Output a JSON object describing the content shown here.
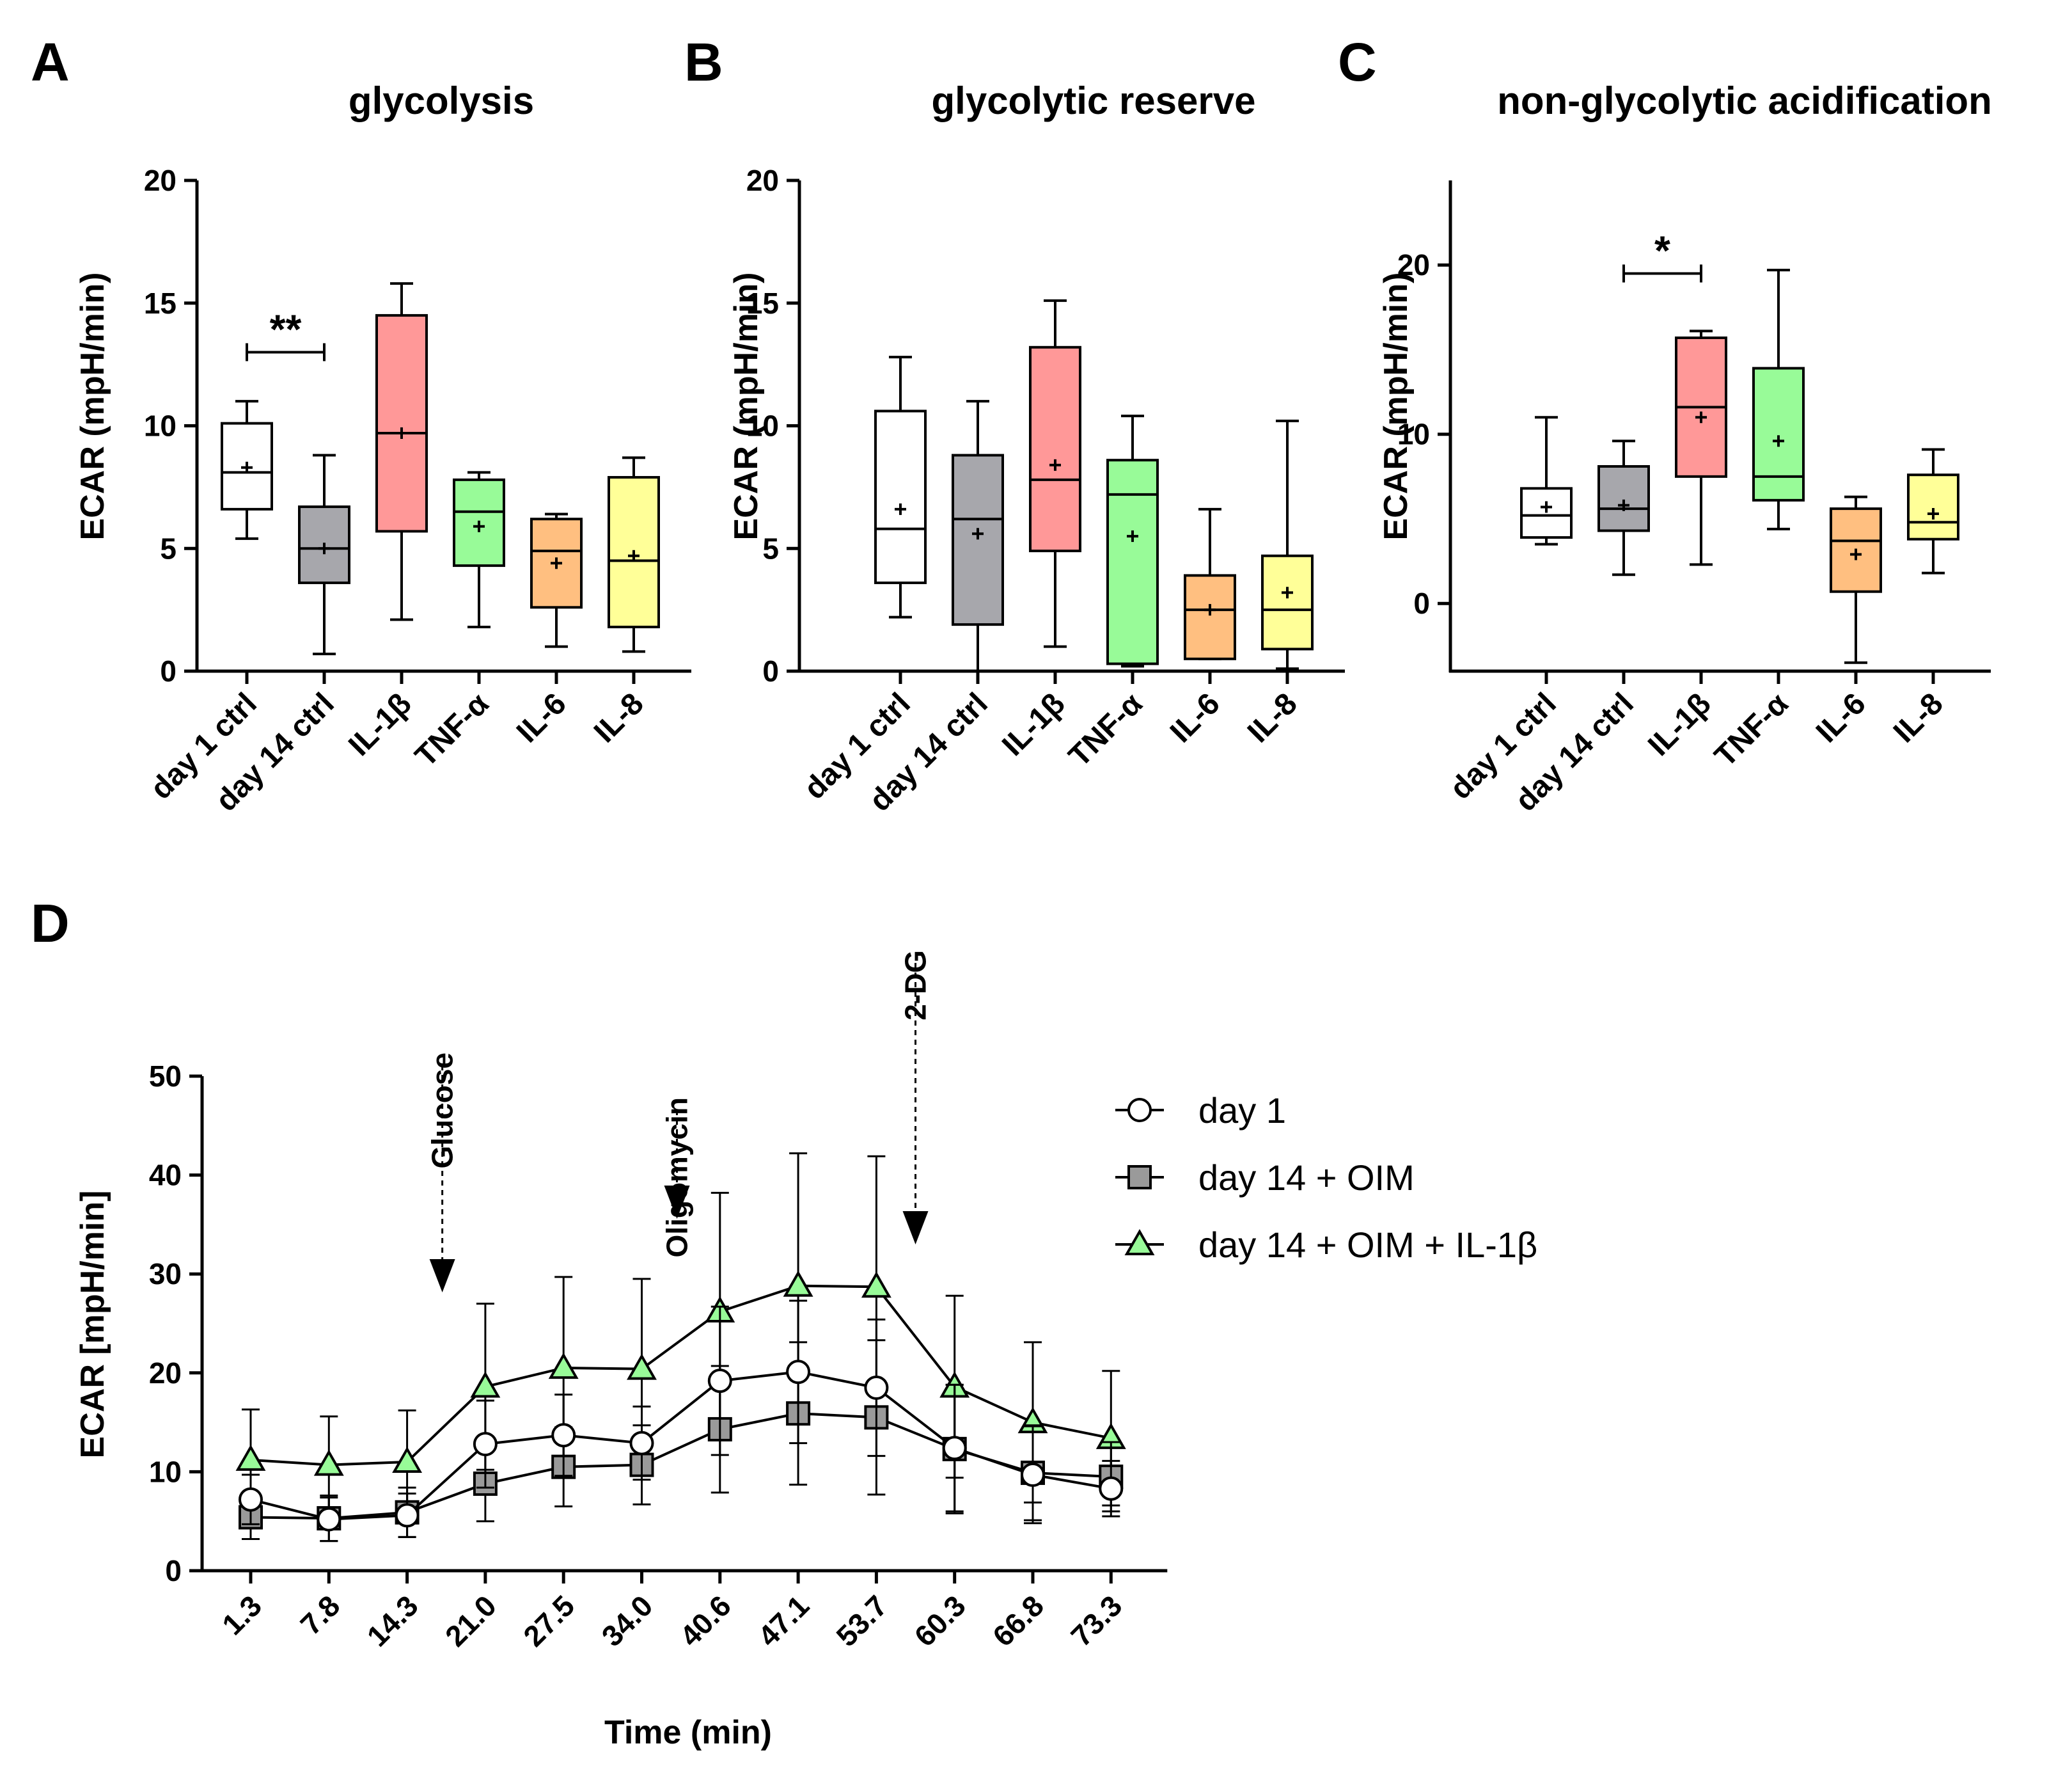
{
  "colors": {
    "day1": "#ffffff",
    "day14": "#a7a7ac",
    "il1b": "#ff9898",
    "tnf": "#98fb98",
    "il6": "#ffbf80",
    "il8": "#ffff98",
    "square": "#9a9a9a",
    "triangle": "#98fb98"
  },
  "chart_data": [
    {
      "panel": "A",
      "type": "box",
      "title": "glycolysis",
      "ylabel": "ECAR (mpH/min)",
      "ylim": [
        0,
        20
      ],
      "yticks": [
        "0",
        "5",
        "10",
        "15",
        "20"
      ],
      "yticks_values": [
        0,
        5,
        10,
        15,
        20
      ],
      "categories": [
        "day 1 ctrl",
        "day 14 ctrl",
        "IL-1β",
        "TNF-α",
        "IL-6",
        "IL-8"
      ],
      "boxes": [
        {
          "min": 5.4,
          "q1": 6.6,
          "median": 8.1,
          "q3": 10.1,
          "max": 11.0,
          "mean": 8.3,
          "color": "day1"
        },
        {
          "min": 0.7,
          "q1": 3.6,
          "median": 5.0,
          "q3": 6.7,
          "max": 8.8,
          "mean": 5.0,
          "color": "day14"
        },
        {
          "min": 2.1,
          "q1": 5.7,
          "median": 9.7,
          "q3": 14.5,
          "max": 15.8,
          "mean": 9.7,
          "color": "il1b"
        },
        {
          "min": 1.8,
          "q1": 4.3,
          "median": 6.5,
          "q3": 7.8,
          "max": 8.1,
          "mean": 5.9,
          "color": "tnf"
        },
        {
          "min": 1.0,
          "q1": 2.6,
          "median": 4.9,
          "q3": 6.2,
          "max": 6.4,
          "mean": 4.4,
          "color": "il6"
        },
        {
          "min": 0.8,
          "q1": 1.8,
          "median": 4.5,
          "q3": 7.9,
          "max": 8.7,
          "mean": 4.7,
          "color": "il8"
        }
      ],
      "significance": {
        "label": "**",
        "from": 0,
        "to": 1,
        "y": 13.0
      }
    },
    {
      "panel": "B",
      "type": "box",
      "title": "glycolytic reserve",
      "ylabel": "ECAR (mpH/min)",
      "ylim": [
        0,
        20
      ],
      "yticks": [
        "0",
        "5",
        "10",
        "15",
        "20"
      ],
      "yticks_values": [
        0,
        5,
        10,
        15,
        20
      ],
      "categories": [
        "day 1 ctrl",
        "day 14 ctrl",
        "IL-1β",
        "TNF-α",
        "IL-6",
        "IL-8"
      ],
      "boxes": [
        {
          "min": 2.2,
          "q1": 3.6,
          "median": 5.8,
          "q3": 10.6,
          "max": 12.8,
          "mean": 6.6,
          "color": "day1"
        },
        {
          "min": 0.0,
          "q1": 1.9,
          "median": 6.2,
          "q3": 8.8,
          "max": 11.0,
          "mean": 5.6,
          "color": "day14"
        },
        {
          "min": 1.0,
          "q1": 4.9,
          "median": 7.8,
          "q3": 13.2,
          "max": 15.1,
          "mean": 8.4,
          "color": "il1b"
        },
        {
          "min": 0.2,
          "q1": 0.3,
          "median": 7.2,
          "q3": 8.6,
          "max": 10.4,
          "mean": 5.5,
          "color": "tnf"
        },
        {
          "min": 0.5,
          "q1": 0.5,
          "median": 2.5,
          "q3": 3.9,
          "max": 6.6,
          "mean": 2.5,
          "color": "il6"
        },
        {
          "min": 0.1,
          "q1": 0.9,
          "median": 2.5,
          "q3": 4.7,
          "max": 10.2,
          "mean": 3.2,
          "color": "il8"
        }
      ]
    },
    {
      "panel": "C",
      "type": "box",
      "title": "non-glycolytic acidification",
      "ylabel": "ECAR (mpH/min)",
      "ylim": [
        -4,
        25
      ],
      "yticks": [
        "0",
        "10",
        "20"
      ],
      "yticks_values": [
        0,
        10,
        20
      ],
      "categories": [
        "day 1 ctrl",
        "day 14 ctrl",
        "IL-1β",
        "TNF-α",
        "IL-6",
        "IL-8"
      ],
      "boxes": [
        {
          "min": 3.5,
          "q1": 3.9,
          "median": 5.2,
          "q3": 6.8,
          "max": 11.0,
          "mean": 5.7,
          "color": "day1"
        },
        {
          "min": 1.7,
          "q1": 4.3,
          "median": 5.6,
          "q3": 8.1,
          "max": 9.6,
          "mean": 5.8,
          "color": "day14"
        },
        {
          "min": 2.3,
          "q1": 7.5,
          "median": 11.6,
          "q3": 15.7,
          "max": 16.1,
          "mean": 11.0,
          "color": "il1b"
        },
        {
          "min": 4.4,
          "q1": 6.1,
          "median": 7.5,
          "q3": 13.9,
          "max": 19.7,
          "mean": 9.6,
          "color": "tnf"
        },
        {
          "min": -3.5,
          "q1": 0.7,
          "median": 3.7,
          "q3": 5.6,
          "max": 6.3,
          "mean": 2.9,
          "color": "il6"
        },
        {
          "min": 1.8,
          "q1": 3.8,
          "median": 4.8,
          "q3": 7.6,
          "max": 9.1,
          "mean": 5.3,
          "color": "il8"
        }
      ],
      "significance": {
        "label": "*",
        "from": 1,
        "to": 2,
        "y": 19.5
      }
    },
    {
      "panel": "D",
      "type": "line",
      "xlabel": "Time (min)",
      "ylabel": "ECAR [mpH/min]",
      "ylim": [
        0,
        50
      ],
      "yticks": [
        "0",
        "10",
        "20",
        "30",
        "40",
        "50"
      ],
      "yticks_values": [
        0,
        10,
        20,
        30,
        40,
        50
      ],
      "categories": [
        "1.3",
        "7.8",
        "14.3",
        "21.0",
        "27.5",
        "34.0",
        "40.6",
        "47.1",
        "53.7",
        "60.3",
        "66.8",
        "73.3"
      ],
      "series": [
        {
          "name": "day 1",
          "marker": "circle",
          "values": [
            7.2,
            5.2,
            5.6,
            12.8,
            13.7,
            12.9,
            19.2,
            20.1,
            18.5,
            12.4,
            9.7,
            8.3
          ],
          "errors": [
            2.5,
            2.2,
            2.2,
            4.4,
            4.1,
            3.7,
            7.5,
            7.2,
            6.9,
            6.4,
            4.9,
            2.8
          ]
        },
        {
          "name": "day 14 + OIM",
          "marker": "square",
          "values": [
            5.4,
            5.3,
            5.9,
            8.8,
            10.5,
            10.7,
            14.3,
            15.9,
            15.5,
            12.3,
            9.9,
            9.5
          ],
          "errors": [
            2.2,
            2.3,
            2.5,
            3.8,
            4.0,
            4.0,
            6.4,
            7.2,
            7.8,
            6.5,
            4.8,
            3.5
          ]
        },
        {
          "name": "day 14 + OIM + IL-1β",
          "marker": "triangle",
          "values": [
            11.2,
            10.7,
            11.0,
            18.6,
            20.5,
            20.4,
            26.2,
            28.8,
            28.7,
            18.6,
            15.0,
            13.4
          ],
          "errors": [
            5.1,
            4.9,
            5.2,
            8.4,
            9.2,
            9.1,
            12.0,
            13.4,
            13.2,
            9.2,
            8.1,
            6.8
          ]
        }
      ],
      "annotations": [
        {
          "label": "Glucose",
          "after_index": 2.45
        },
        {
          "label": "Oligomycin",
          "after_index": 5.45
        },
        {
          "label": "2-DG",
          "after_index": 8.5
        }
      ]
    }
  ]
}
